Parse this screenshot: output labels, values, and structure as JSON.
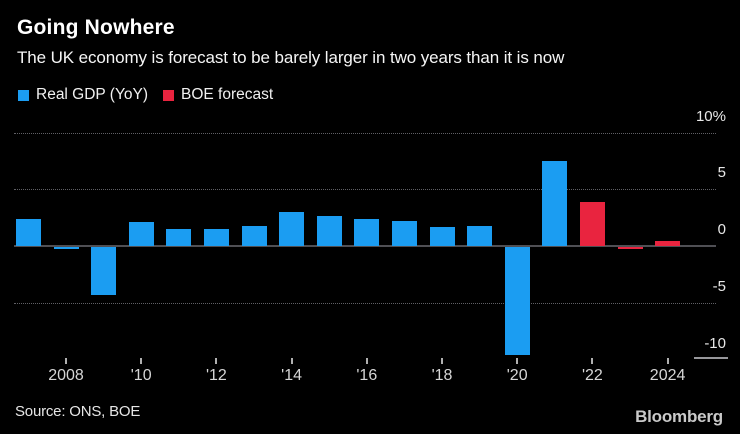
{
  "title": "Going Nowhere",
  "subtitle": "The UK economy is forecast to be barely larger in two years than it is now",
  "legend": {
    "items": [
      {
        "label": "Real GDP (YoY)",
        "color": "#1b9df2"
      },
      {
        "label": "BOE forecast",
        "color": "#e9243f"
      }
    ]
  },
  "footer": {
    "source": "Source: ONS, BOE",
    "brand": "Bloomberg"
  },
  "colors": {
    "background": "#000000",
    "blue": "#1b9df2",
    "red": "#e9243f",
    "grid_dotted": "#606065",
    "zero_line": "#4f4f54",
    "tick": "#b0b0b0",
    "y_label": "#e8e8e8",
    "x_label": "#d6d6d6"
  },
  "chart_data": {
    "type": "bar",
    "title": "Going Nowhere",
    "subtitle": "The UK economy is forecast to be barely larger in two years than it is now",
    "unit": "%",
    "x": [
      2007,
      2008,
      2009,
      2010,
      2011,
      2012,
      2013,
      2014,
      2015,
      2016,
      2017,
      2018,
      2019,
      2020,
      2021,
      2022,
      2023,
      2024
    ],
    "series": [
      {
        "name": "Real GDP (YoY)",
        "color": "#1b9df2",
        "values": [
          2.4,
          -0.2,
          -4.2,
          2.1,
          1.5,
          1.5,
          1.8,
          3.0,
          2.6,
          2.4,
          2.2,
          1.7,
          1.8,
          -9.5,
          7.5,
          null,
          null,
          null
        ]
      },
      {
        "name": "BOE forecast",
        "color": "#e9243f",
        "values": [
          null,
          null,
          null,
          null,
          null,
          null,
          null,
          null,
          null,
          null,
          null,
          null,
          null,
          null,
          null,
          3.9,
          -0.2,
          0.4
        ]
      }
    ],
    "ylim": [
      -11,
      10.8
    ],
    "yticks": [
      {
        "value": 10,
        "label": "10%"
      },
      {
        "value": 5,
        "label": "5"
      },
      {
        "value": 0,
        "label": "0"
      },
      {
        "value": -5,
        "label": "-5"
      },
      {
        "value": -10,
        "label": "-10"
      }
    ],
    "dotted_gridlines_at": [
      10,
      5,
      -5
    ],
    "zero_line": true,
    "xticks": [
      {
        "x": 2008,
        "label": "2008"
      },
      {
        "x": 2010,
        "label": "'10"
      },
      {
        "x": 2012,
        "label": "'12"
      },
      {
        "x": 2014,
        "label": "'14"
      },
      {
        "x": 2016,
        "label": "'16"
      },
      {
        "x": 2018,
        "label": "'18"
      },
      {
        "x": 2020,
        "label": "'20"
      },
      {
        "x": 2022,
        "label": "'22"
      },
      {
        "x": 2024,
        "label": "2024"
      }
    ],
    "legend_position": "top-left",
    "grid": "horizontal-dotted"
  }
}
